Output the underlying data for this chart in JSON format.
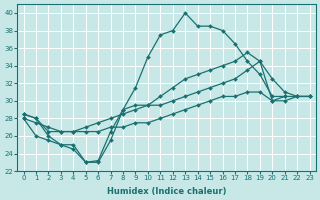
{
  "xlabel": "Humidex (Indice chaleur)",
  "bg_color": "#c8e8e8",
  "line_color": "#1a7070",
  "grid_color": "#ffffff",
  "xlim": [
    -0.5,
    23.5
  ],
  "ylim": [
    22,
    41
  ],
  "xticks": [
    0,
    1,
    2,
    3,
    4,
    5,
    6,
    7,
    8,
    9,
    10,
    11,
    12,
    13,
    14,
    15,
    16,
    17,
    18,
    19,
    20,
    21,
    22,
    23
  ],
  "yticks": [
    22,
    24,
    26,
    28,
    30,
    32,
    34,
    36,
    38,
    40
  ],
  "series": [
    {
      "x": [
        0,
        1,
        2,
        3,
        4,
        5,
        6,
        7,
        8,
        9,
        10,
        11,
        12,
        13,
        14,
        15,
        16,
        17,
        18,
        19,
        20,
        21
      ],
      "y": [
        28.5,
        28.0,
        26.0,
        25.0,
        25.0,
        23.0,
        23.0,
        25.5,
        29.0,
        31.5,
        35.0,
        37.5,
        38.0,
        40.0,
        38.5,
        38.5,
        38.0,
        36.5,
        34.5,
        33.0,
        30.5,
        30.5
      ]
    },
    {
      "x": [
        0,
        1,
        2,
        3,
        4,
        5,
        6,
        7,
        8,
        9,
        10,
        11,
        12,
        13,
        14,
        15,
        16,
        17,
        18,
        19,
        20,
        21,
        22,
        23
      ],
      "y": [
        28.5,
        28.0,
        26.5,
        26.5,
        26.5,
        27.0,
        27.5,
        28.0,
        28.5,
        29.0,
        29.5,
        30.5,
        31.5,
        32.5,
        33.0,
        33.5,
        34.0,
        34.5,
        35.5,
        34.5,
        32.5,
        31.0,
        30.5,
        30.5
      ]
    },
    {
      "x": [
        0,
        1,
        2,
        3,
        4,
        5,
        6,
        7,
        8,
        9,
        10,
        11,
        12,
        13,
        14,
        15,
        16,
        17,
        18,
        19,
        20,
        21,
        22,
        23
      ],
      "y": [
        28.0,
        27.5,
        27.0,
        26.5,
        26.5,
        26.5,
        26.5,
        27.0,
        27.0,
        27.5,
        27.5,
        28.0,
        28.5,
        29.0,
        29.5,
        30.0,
        30.5,
        30.5,
        31.0,
        31.0,
        30.0,
        30.0,
        30.5,
        30.5
      ]
    },
    {
      "x": [
        0,
        1,
        2,
        3,
        4,
        5,
        6,
        7,
        8,
        9,
        10,
        11,
        12,
        13,
        14,
        15,
        16,
        17,
        18,
        19,
        20,
        21,
        22,
        23
      ],
      "y": [
        28.0,
        26.0,
        25.5,
        25.0,
        24.5,
        23.0,
        23.2,
        26.5,
        29.0,
        29.5,
        29.5,
        29.5,
        30.0,
        30.5,
        31.0,
        31.5,
        32.0,
        32.5,
        33.5,
        34.5,
        30.0,
        30.5,
        30.5,
        30.5
      ]
    }
  ]
}
